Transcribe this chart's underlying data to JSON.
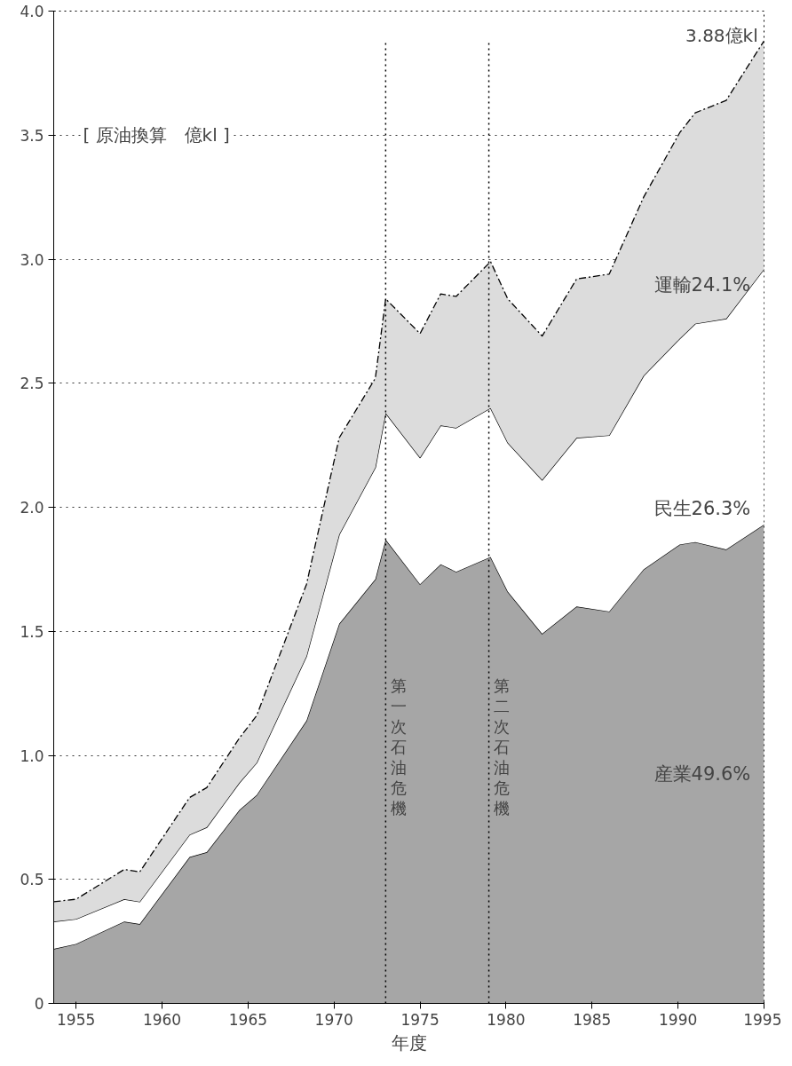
{
  "chart_data": {
    "type": "area",
    "stacked": true,
    "xlabel": "年度",
    "x": [
      1953.7,
      1955,
      1957.8,
      1958.7,
      1961.6,
      1962.6,
      1964.5,
      1965.5,
      1968.4,
      1970.3,
      1972.4,
      1973,
      1975,
      1976.2,
      1977.1,
      1979.1,
      1980.1,
      1982.1,
      1984.1,
      1986,
      1988,
      1990.1,
      1991,
      1992.8,
      1995
    ],
    "series": [
      {
        "name": "産業49.6%",
        "color": "#a6a6a6",
        "values": [
          0.22,
          0.24,
          0.33,
          0.32,
          0.59,
          0.61,
          0.78,
          0.84,
          1.14,
          1.53,
          1.71,
          1.87,
          1.69,
          1.77,
          1.74,
          1.8,
          1.66,
          1.49,
          1.6,
          1.58,
          1.75,
          1.85,
          1.86,
          1.83,
          1.93
        ]
      },
      {
        "name": "民生26.3%",
        "color": "#ffffff",
        "values": [
          0.11,
          0.1,
          0.09,
          0.09,
          0.09,
          0.1,
          0.11,
          0.13,
          0.26,
          0.36,
          0.45,
          0.51,
          0.51,
          0.56,
          0.58,
          0.6,
          0.6,
          0.62,
          0.68,
          0.71,
          0.78,
          0.83,
          0.88,
          0.93,
          1.03
        ]
      },
      {
        "name": "運輸24.1%",
        "color": "#dcdcdc",
        "line_style": "dashed",
        "values": [
          0.08,
          0.08,
          0.12,
          0.12,
          0.15,
          0.16,
          0.18,
          0.19,
          0.29,
          0.39,
          0.36,
          0.46,
          0.5,
          0.53,
          0.53,
          0.59,
          0.58,
          0.58,
          0.64,
          0.65,
          0.72,
          0.83,
          0.85,
          0.88,
          0.92
        ]
      }
    ],
    "xlim": [
      1953.7,
      1995
    ],
    "xticks": [
      1955,
      1960,
      1965,
      1970,
      1975,
      1980,
      1985,
      1990,
      1995
    ],
    "ylim": [
      0,
      4.0
    ],
    "yticks": [
      0,
      0.5,
      {
        "value": 1,
        "label": "1.0"
      },
      1.5,
      {
        "value": 2,
        "label": "2.0"
      },
      2.5,
      {
        "value": 3,
        "label": "3.0"
      },
      3.5,
      {
        "value": 4,
        "label": "4.0"
      }
    ],
    "grid": "y",
    "ref_lines": [
      {
        "axis": "x",
        "value": 1973,
        "label": "第一次石油危機",
        "line_style": "dotted"
      },
      {
        "axis": "x",
        "value": 1979,
        "label": "第二次石油危機",
        "line_style": "dotted"
      }
    ],
    "annotations": [
      "[ 原油換算　億kl ]",
      {
        "text": "3.88億kl",
        "x": 1995,
        "y": 3.88
      }
    ]
  }
}
